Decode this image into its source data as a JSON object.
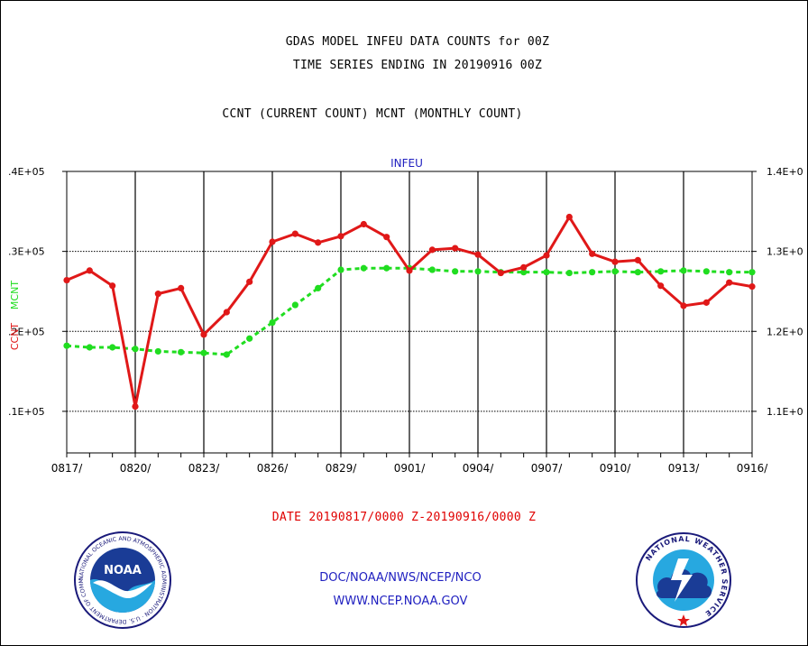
{
  "titles": {
    "line1": "GDAS MODEL INFEU DATA COUNTS for 00Z",
    "line2": "TIME SERIES ENDING IN 20190916 00Z",
    "line3": "CCNT (CURRENT COUNT) MCNT (MONTHLY COUNT)"
  },
  "footer": {
    "date_range": "DATE 20190817/0000 Z-20190916/0000 Z",
    "org_path": "DOC/NOAA/NWS/NCEP/NCO",
    "url": "WWW.NCEP.NOAA.GOV"
  },
  "logos": {
    "noaa": "NOAA",
    "noaa_ring": "NATIONAL OCEANIC AND ATMOSPHERIC ADMINISTRATION · U.S. DEPARTMENT OF COMMERCE",
    "nws_ring": "NATIONAL WEATHER SERVICE"
  },
  "colors": {
    "ccnt": "#e01818",
    "mcnt": "#20dd20",
    "axis": "#000000",
    "footer_text": "#2020c0"
  },
  "chart_data": {
    "type": "line",
    "panel_label": "INFEU",
    "left_axis_label_ccnt": "CCNT",
    "left_axis_label_mcnt": "MCNT",
    "x_tick_labels": [
      "0817/",
      "0820/",
      "0823/",
      "0826/",
      "0829/",
      "0901/",
      "0904/",
      "0907/",
      "0910/",
      "0913/",
      "0916/"
    ],
    "y_left_tick_labels": [
      ".1E+05",
      ".2E+05",
      ".3E+05",
      ".4E+05"
    ],
    "y_left_ticks": [
      10000,
      20000,
      30000,
      40000
    ],
    "y_right_tick_labels": [
      "1.1E+0",
      "1.2E+0",
      "1.3E+0",
      "1.4E+0"
    ],
    "ylim": [
      4800,
      40000
    ],
    "grid": true,
    "x": [
      "0817",
      "0818",
      "0819",
      "0820",
      "0821",
      "0822",
      "0823",
      "0824",
      "0825",
      "0826",
      "0827",
      "0828",
      "0829",
      "0830",
      "0831",
      "0901",
      "0902",
      "0903",
      "0904",
      "0905",
      "0906",
      "0907",
      "0908",
      "0909",
      "0910",
      "0911",
      "0912",
      "0913",
      "0914",
      "0915",
      "0916"
    ],
    "series": [
      {
        "name": "CCNT",
        "color": "#e01818",
        "values": [
          26400,
          27600,
          25700,
          10600,
          24700,
          25400,
          19600,
          22400,
          26200,
          31200,
          32200,
          31100,
          31900,
          33400,
          31800,
          27600,
          30200,
          30400,
          29600,
          27300,
          28000,
          29500,
          34300,
          29700,
          28700,
          28900,
          25700,
          23200,
          23600,
          26100,
          25600
        ]
      },
      {
        "name": "MCNT",
        "color": "#20dd20",
        "values": [
          18200,
          18000,
          18000,
          17800,
          17500,
          17400,
          17300,
          17100,
          19100,
          21100,
          23300,
          25400,
          27700,
          27900,
          27900,
          27900,
          27700,
          27500,
          27500,
          27400,
          27400,
          27400,
          27300,
          27400,
          27500,
          27400,
          27500,
          27600,
          27500,
          27400,
          27400
        ]
      }
    ]
  }
}
